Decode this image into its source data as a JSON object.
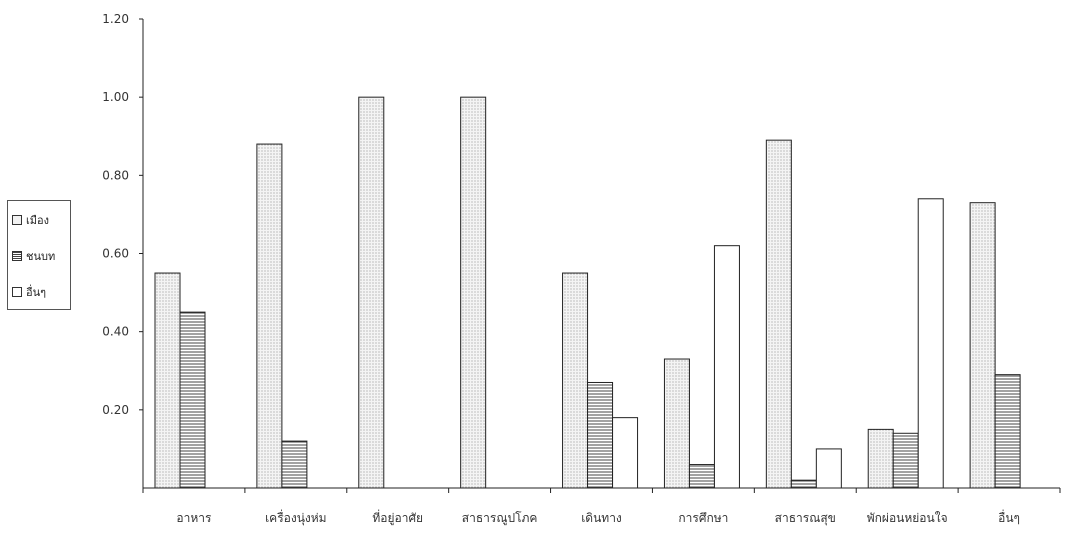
{
  "chart_data": {
    "type": "bar",
    "categories": [
      "อาหาร",
      "เครื่องนุ่งห่ม",
      "ที่อยู่อาศัย",
      "สาธารณูปโภค",
      "เดินทาง",
      "การศึกษา",
      "สาธารณสุข",
      "พักผ่อนหย่อนใจ",
      "อื่นๆ"
    ],
    "series": [
      {
        "name": "เมือง",
        "values": [
          0.55,
          0.88,
          1.0,
          1.0,
          0.55,
          0.33,
          0.89,
          0.15,
          0.73
        ],
        "pattern": "dots"
      },
      {
        "name": "ชนบท",
        "values": [
          0.45,
          0.12,
          0.0,
          0.0,
          0.27,
          0.06,
          0.02,
          0.14,
          0.29
        ],
        "pattern": "hlines"
      },
      {
        "name": "อื่นๆ",
        "values": [
          0.0,
          0.0,
          0.0,
          0.0,
          0.18,
          0.62,
          0.1,
          0.74,
          0.0
        ],
        "pattern": "plain"
      }
    ],
    "ylim": [
      0,
      1.2
    ],
    "yticks": [
      "0.20",
      "0.40",
      "0.60",
      "0.80",
      "1.00",
      "1.20"
    ],
    "legend_position": "left",
    "grid": false,
    "colors": {
      "bar_edge": "#222222",
      "dot_fill": "#d8d8d8",
      "line_fill": "#555555",
      "background": "#ffffff"
    }
  }
}
